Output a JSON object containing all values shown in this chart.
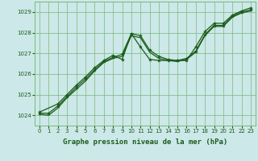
{
  "title": "Graphe pression niveau de la mer (hPa)",
  "bg_color": "#cce8e8",
  "grid_color": "#7ab87a",
  "line_color": "#1a5c1a",
  "xlim": [
    -0.5,
    23.5
  ],
  "ylim": [
    1023.5,
    1029.5
  ],
  "yticks": [
    1024,
    1025,
    1026,
    1027,
    1028,
    1029
  ],
  "xticks": [
    0,
    1,
    2,
    3,
    4,
    5,
    6,
    7,
    8,
    9,
    10,
    11,
    12,
    13,
    14,
    15,
    16,
    17,
    18,
    19,
    20,
    21,
    22,
    23
  ],
  "line1_x": [
    0,
    1,
    2,
    3,
    4,
    5,
    6,
    7,
    8,
    9,
    10,
    11,
    12,
    13,
    14,
    15,
    16,
    17,
    18,
    19,
    20,
    21,
    22,
    23
  ],
  "line1_y": [
    1024.05,
    1024.0,
    1024.35,
    1024.85,
    1025.25,
    1025.65,
    1026.15,
    1026.55,
    1026.75,
    1026.85,
    1027.85,
    1027.75,
    1027.05,
    1026.75,
    1026.65,
    1026.6,
    1026.7,
    1027.05,
    1027.85,
    1028.3,
    1028.3,
    1028.75,
    1028.95,
    1029.05
  ],
  "line2_x": [
    0,
    1,
    2,
    3,
    4,
    5,
    6,
    7,
    8,
    9,
    10,
    11,
    12,
    13,
    14,
    15,
    16,
    17,
    18,
    19,
    20,
    21,
    22,
    23
  ],
  "line2_y": [
    1024.1,
    1024.1,
    1024.45,
    1024.9,
    1025.35,
    1025.75,
    1026.2,
    1026.6,
    1026.8,
    1026.95,
    1027.95,
    1027.85,
    1027.15,
    1026.85,
    1026.7,
    1026.65,
    1026.75,
    1027.1,
    1027.9,
    1028.35,
    1028.35,
    1028.8,
    1029.0,
    1029.1
  ],
  "line3_x": [
    0,
    2,
    3,
    4,
    5,
    6,
    7,
    8,
    9,
    10,
    11,
    12,
    13,
    14,
    15,
    16,
    17,
    18,
    19,
    20,
    21,
    22,
    23
  ],
  "line3_y": [
    1024.15,
    1024.55,
    1025.0,
    1025.45,
    1025.85,
    1026.3,
    1026.65,
    1026.9,
    1026.7,
    1027.95,
    1027.3,
    1026.7,
    1026.65,
    1026.65,
    1026.65,
    1026.65,
    1027.3,
    1028.05,
    1028.45,
    1028.45,
    1028.85,
    1029.05,
    1029.2
  ],
  "marker_size": 3,
  "line_width": 0.9,
  "title_fontsize": 6.5,
  "tick_fontsize": 5
}
